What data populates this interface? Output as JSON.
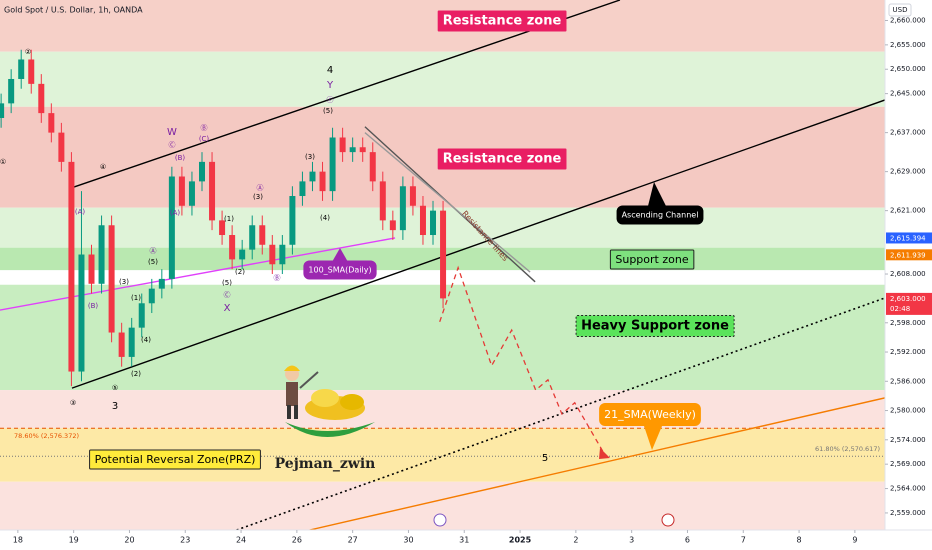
{
  "chart_data": {
    "type": "candlestick",
    "title": "Gold Spot / U.S. Dollar, 1h, OANDA",
    "currency": "USD",
    "x": [
      -0.3,
      -0.12,
      0.06,
      0.24,
      0.42,
      0.6,
      0.78,
      0.96,
      1.14,
      1.32,
      1.5,
      1.68,
      1.86,
      2.04,
      2.22,
      2.4,
      2.58,
      2.76,
      2.94,
      3.12,
      3.3,
      3.48,
      3.66,
      3.84,
      4.02,
      4.2,
      4.38,
      4.56,
      4.74,
      4.92,
      5.1,
      5.28,
      5.46,
      5.64,
      5.82,
      6,
      6.18,
      6.36,
      6.54,
      6.72,
      6.9,
      7.08,
      7.26,
      7.44,
      7.62
    ],
    "open": [
      2640,
      2643,
      2648,
      2652,
      2647,
      2641,
      2637,
      2631,
      2588,
      2612,
      2606,
      2618,
      2596,
      2591,
      2597,
      2602,
      2605,
      2607,
      2628,
      2622,
      2627,
      2631,
      2619,
      2616,
      2611,
      2613,
      2618,
      2614,
      2610,
      2614,
      2624,
      2627,
      2629,
      2625,
      2636,
      2633,
      2634,
      2633,
      2627,
      2619,
      2617,
      2626,
      2622,
      2616,
      2621
    ],
    "high": [
      2645,
      2650,
      2654,
      2654,
      2649,
      2643,
      2639,
      2633,
      2625,
      2614,
      2620,
      2620,
      2598,
      2599,
      2604,
      2607,
      2609,
      2630,
      2630,
      2629,
      2633,
      2633,
      2621,
      2618,
      2615,
      2620,
      2620,
      2616,
      2616,
      2626,
      2629,
      2631,
      2631,
      2638,
      2638,
      2636,
      2636,
      2635,
      2629,
      2621,
      2628,
      2628,
      2624,
      2623,
      2623
    ],
    "low": [
      2638,
      2641,
      2646,
      2645,
      2639,
      2635,
      2629,
      2585,
      2586,
      2604,
      2604,
      2594,
      2589,
      2589,
      2595,
      2600,
      2603,
      2605,
      2620,
      2620,
      2625,
      2617,
      2614,
      2609,
      2609,
      2611,
      2612,
      2608,
      2608,
      2612,
      2622,
      2625,
      2623,
      2623,
      2631,
      2631,
      2631,
      2625,
      2617,
      2615,
      2615,
      2620,
      2614,
      2614,
      2601
    ],
    "close": [
      2643,
      2648,
      2652,
      2647,
      2641,
      2637,
      2631,
      2588,
      2612,
      2606,
      2618,
      2596,
      2591,
      2597,
      2602,
      2605,
      2607,
      2628,
      2622,
      2627,
      2631,
      2619,
      2616,
      2611,
      2613,
      2618,
      2614,
      2610,
      2614,
      2624,
      2627,
      2629,
      2625,
      2636,
      2633,
      2634,
      2633,
      2627,
      2619,
      2617,
      2626,
      2622,
      2616,
      2621,
      2603
    ],
    "up_color": "#089981",
    "down_color": "#f23645",
    "xlim": [
      -0.32,
      15.54
    ],
    "ylim": [
      2555.5,
      2664.2
    ],
    "xticks": [
      {
        "value": 0,
        "label": "18"
      },
      {
        "value": 1,
        "label": "19"
      },
      {
        "value": 2,
        "label": "20"
      },
      {
        "value": 3,
        "label": "23"
      },
      {
        "value": 4,
        "label": "24"
      },
      {
        "value": 5,
        "label": "26"
      },
      {
        "value": 6,
        "label": "27"
      },
      {
        "value": 7,
        "label": "30"
      },
      {
        "value": 8,
        "label": "31"
      },
      {
        "value": 9,
        "label": "2025"
      },
      {
        "value": 10,
        "label": "2"
      },
      {
        "value": 11,
        "label": "3"
      },
      {
        "value": 12,
        "label": "6"
      },
      {
        "value": 13,
        "label": "7"
      },
      {
        "value": 14,
        "label": "8"
      },
      {
        "value": 15,
        "label": "9"
      }
    ],
    "yticks": [
      {
        "value": 2660,
        "label": "2,660.000"
      },
      {
        "value": 2655,
        "label": "2,655.000"
      },
      {
        "value": 2650,
        "label": "2,650.000"
      },
      {
        "value": 2645,
        "label": "2,645.000"
      },
      {
        "value": 2637,
        "label": "2,637.000"
      },
      {
        "value": 2629,
        "label": "2,629.000"
      },
      {
        "value": 2621,
        "label": "2,621.000"
      },
      {
        "value": 2608,
        "label": "2,608.000"
      },
      {
        "value": 2598,
        "label": "2,598.000"
      },
      {
        "value": 2592,
        "label": "2,592.000"
      },
      {
        "value": 2586,
        "label": "2,586.000"
      },
      {
        "value": 2580,
        "label": "2,580.000"
      },
      {
        "value": 2574,
        "label": "2,574.000"
      },
      {
        "value": 2569,
        "label": "2,569.000"
      },
      {
        "value": 2564,
        "label": "2,564.000"
      },
      {
        "value": 2559,
        "label": "2,559.000"
      }
    ],
    "zones": [
      {
        "range": [
          2653.6,
          2664.2
        ],
        "color": "#f6d0c8"
      },
      {
        "range": [
          2642.3,
          2653.6
        ],
        "color": "#dff3d8"
      },
      {
        "range": [
          2621.6,
          2642.3
        ],
        "color": "#f4c9c2"
      },
      {
        "range": [
          2613.4,
          2621.6
        ],
        "color": "#dff3d8"
      },
      {
        "range": [
          2608.8,
          2613.4
        ],
        "color": "#b9e8b0"
      },
      {
        "range": [
          2584.2,
          2605.8
        ],
        "color": "#c8edc0"
      },
      {
        "range": [
          2576.4,
          2584.2
        ],
        "color": "#fbe2de"
      },
      {
        "range": [
          2565.4,
          2576.4
        ],
        "color": "#fde9a6"
      },
      {
        "range": [
          2555.5,
          2565.4
        ],
        "color": "#fbe2de"
      }
    ],
    "lines": [
      {
        "x": [
          0.97,
          10.79
        ],
        "y": [
          2625.7,
          2664.2
        ],
        "color": "#000000",
        "style": "solid"
      },
      {
        "x": [
          0.97,
          15.54
        ],
        "y": [
          2584.6,
          2643.7
        ],
        "color": "#000000",
        "style": "solid"
      },
      {
        "x": [
          3.92,
          15.54
        ],
        "y": [
          2555.5,
          2603.1
        ],
        "color": "#000000",
        "style": "dotted"
      },
      {
        "x": [
          5.23,
          15.54
        ],
        "y": [
          2555.5,
          2582.6
        ],
        "color": "#f57c00",
        "style": "solid"
      },
      {
        "x": [
          -0.32,
          6.76
        ],
        "y": [
          2600.6,
          2615.4
        ],
        "color": "#e040fb",
        "style": "solid"
      },
      {
        "x": [
          6.22,
          9.27
        ],
        "y": [
          2638.2,
          2606.4
        ],
        "color": "#555555",
        "style": "solid"
      },
      {
        "x": [
          6.22,
          9.18
        ],
        "y": [
          2637.0,
          2608.4
        ],
        "color": "#999999",
        "style": "solid"
      }
    ],
    "projection": {
      "x": [
        7.56,
        7.89,
        8.49,
        8.85,
        9.28,
        9.5,
        9.75,
        9.98,
        10.52
      ],
      "y": [
        2598.2,
        2609.3,
        2589.2,
        2596.5,
        2584.2,
        2586.3,
        2579.3,
        2581.6,
        2570.9
      ],
      "color": "#e53935"
    },
    "fib_levels": [
      {
        "value": 2576.372,
        "label": "78.60% (2,576.372)",
        "color": "#e65100"
      },
      {
        "value": 2570.617,
        "label": "61.80% (2,570.617)",
        "color": "#777777"
      }
    ],
    "price_tags": [
      {
        "value": 2615.394,
        "label": "2,615.394",
        "color": "#2962ff"
      },
      {
        "value": 2611.939,
        "label": "2,611.939",
        "color": "#f57c00"
      },
      {
        "value": 2603.0,
        "label": "2,603.000",
        "color": "#f23645"
      }
    ],
    "countdown": "02:48",
    "annotations": [
      {
        "text": "Resistance zone",
        "color": "#e91e63"
      },
      {
        "text": "Resistance zone",
        "color": "#e91e63"
      },
      {
        "text": "Support zone",
        "color": "#7ee07e"
      },
      {
        "text": "Heavy Support zone",
        "color": "#5be35b"
      },
      {
        "text": "Potential Reversal Zone(PRZ)",
        "color": "#ffeb3b"
      },
      {
        "text": "Ascending Channel",
        "color": "#000000"
      },
      {
        "text": "100_SMA(Daily)",
        "color": "#9c27b0"
      },
      {
        "text": "21_SMA(Weekly)",
        "color": "#ff9800"
      }
    ],
    "notes": [
      "Resistance lines",
      "5",
      "Pejman_zwin"
    ],
    "wave_labels": [
      "②",
      "①",
      "4",
      "Y",
      "ⓒ",
      "(5)",
      "W",
      "Ⓒ",
      "Ⓑ",
      "(C)",
      "(B)",
      "④",
      "(3)",
      "(4)",
      "(A)",
      "Ⓐ",
      "(3)",
      "(1)",
      "(2)",
      "(5)",
      "Ⓒ",
      "X",
      "Ⓑ",
      "③",
      "3",
      "⑤",
      "(2)",
      "(4)",
      "(5)",
      "Ⓐ",
      "(3)",
      "(1)",
      "(B)",
      "(A)"
    ]
  }
}
